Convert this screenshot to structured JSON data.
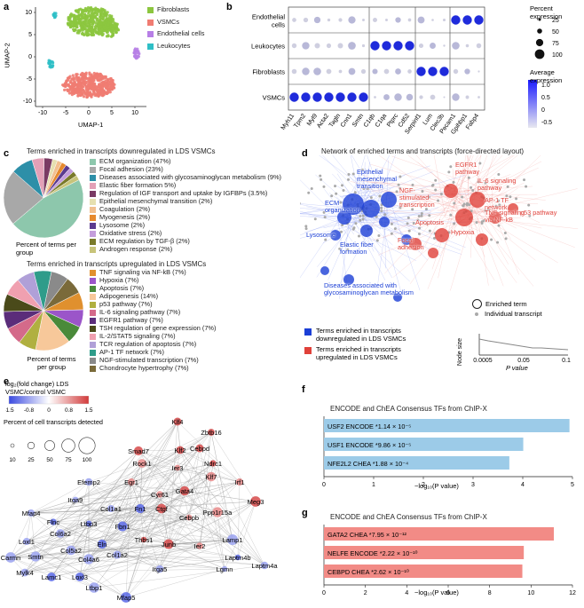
{
  "panels": {
    "a": {
      "label": "a",
      "xlabel": "UMAP-1",
      "ylabel": "UMAP-2",
      "xticks": [
        "-10",
        "-5",
        "0",
        "5",
        "10"
      ],
      "yticks": [
        "10",
        "5",
        "0",
        "-5",
        "-10"
      ],
      "legend": [
        {
          "name": "Fibroblasts",
          "color": "#8cc63f"
        },
        {
          "name": "VSMCs",
          "color": "#f07c72"
        },
        {
          "name": "Endothelial cells",
          "color": "#b77fe6"
        },
        {
          "name": "Leukocytes",
          "color": "#2fbfc6"
        }
      ]
    },
    "b": {
      "label": "b",
      "rows": [
        "Endothelial cells",
        "Leukocytes",
        "Fibroblasts",
        "VSMCs"
      ],
      "genes": [
        "Myh11",
        "Tpm2",
        "Myl9",
        "Acta2",
        "Tagln",
        "Cnn1",
        "Smtn",
        "C1qb",
        "C1qa",
        "Ptprc",
        "Cd52",
        "Serpinf1",
        "Lum",
        "Clec3b",
        "Pecam1",
        "Gpihbp1",
        "Fabp4"
      ],
      "size_legend_title": "Percent expression",
      "size_legend": [
        "25",
        "50",
        "75",
        "100"
      ],
      "color_legend_title": "Average expression",
      "color_legend": [
        "1.0",
        "0.5",
        "0",
        "-0.5"
      ]
    },
    "c": {
      "label": "c",
      "down_title": "Terms enriched in transcripts downregulated in LDS VSMCs",
      "down_items": [
        {
          "label": "ECM organization (47%)",
          "color": "#8dc7ac"
        },
        {
          "label": "Focal adhesion (23%)",
          "color": "#a8a8a8"
        },
        {
          "label": "Diseases associated with glycosaminoglycan metabolism (9%)",
          "color": "#2d8fa8"
        },
        {
          "label": "Elastic fiber formation 5%)",
          "color": "#e3a0b7"
        },
        {
          "label": "Regulation of IGF transport and uptake by IGFBPs (3.5%)",
          "color": "#7a3a63"
        },
        {
          "label": "Epithelial mesenchymal transition (2%)",
          "color": "#e6e0b0"
        },
        {
          "label": "Coagulation (2%)",
          "color": "#f2c08f"
        },
        {
          "label": "Myogenesis (2%)",
          "color": "#e68a2e"
        },
        {
          "label": "Lysosome (2%)",
          "color": "#5b3b8f"
        },
        {
          "label": "Oxidative stress (2%)",
          "color": "#c49ddb"
        },
        {
          "label": "ECM regulation by TGF-β (2%)",
          "color": "#7a7a2a"
        },
        {
          "label": "Androgen response (2%)",
          "color": "#c8c47a"
        }
      ],
      "down_caption": "Percent of terms per group",
      "up_title": "Terms enriched in transcripts upregulated in LDS VSMCs",
      "up_items": [
        {
          "label": "TNF signaling via NF-kB (7%)",
          "color": "#e0902e"
        },
        {
          "label": "Hypoxia (7%)",
          "color": "#9b55c9"
        },
        {
          "label": "Apoptosis (7%)",
          "color": "#4a8a3a"
        },
        {
          "label": "Adipogenesis (14%)",
          "color": "#f7c89a"
        },
        {
          "label": "p53 pathway (7%)",
          "color": "#b0b040"
        },
        {
          "label": "IL-6 signaling pathway (7%)",
          "color": "#d46a8a"
        },
        {
          "label": "EGFR1 pathway (7%)",
          "color": "#5b2d7a"
        },
        {
          "label": "TSH regulation of gene expression (7%)",
          "color": "#4a4a1a"
        },
        {
          "label": "IL-2/STAT5 signaling (7%)",
          "color": "#f0a0b0"
        },
        {
          "label": "TCR regulation of apoptosis (7%)",
          "color": "#b0a0d8"
        },
        {
          "label": "AP-1 TF network (7%)",
          "color": "#2f9c8a"
        },
        {
          "label": "NGF-stimulated transcription (7%)",
          "color": "#8a8a8a"
        },
        {
          "label": "Chondrocyte hypertrophy (7%)",
          "color": "#7a6a3a"
        }
      ],
      "up_caption": "Percent of terms per group"
    },
    "d": {
      "label": "d",
      "title": "Network of enriched terms and transcripts (force-directed layout)",
      "blue_terms": [
        "Epithelial mesenchymal transition",
        "ECM organization",
        "Lysosome",
        "Elastic fiber formation",
        "Diseases associated with glycosaminoglycan metabolism"
      ],
      "red_terms": [
        "EGFR1 pathway",
        "IL-6 signaling pathway",
        "AP-1 TF network",
        "p53 pathway",
        "TNF signaling via NF-kB",
        "Hypoxia",
        "Apoptosis",
        "Focal adhesion",
        "NGF-stimulated transcription"
      ],
      "node_legend": [
        "Enriched term",
        "Individual transcript"
      ],
      "color_legend": [
        {
          "label": "Terms enriched in transcripts downregulated in LDS VSMCs",
          "color": "#1b3fd6"
        },
        {
          "label": "Terms enriched in transcripts upregulated in LDS VSMCs",
          "color": "#e0413a"
        }
      ],
      "size_axis_label": "Node size",
      "p_axis_label": "P value",
      "p_ticks": [
        "0.0005",
        "0.05",
        "0.1"
      ]
    },
    "e": {
      "label": "e",
      "fc_title": "log₂(fold change) LDS VSMC/control VSMC",
      "fc_ticks": [
        "-1.5",
        "-0.8",
        "0",
        "0.8",
        "1.5"
      ],
      "pct_title": "Percent of cell transcripts detected",
      "pct_ticks": [
        "10",
        "25",
        "50",
        "75",
        "100"
      ],
      "genes": [
        "Klf4",
        "Zbtb16",
        "Smad7",
        "Klf2",
        "Ndrc1",
        "Cebpd",
        "Rock1",
        "Ier3",
        "Klf7",
        "Irf1",
        "Egr1",
        "Gata4",
        "Meg3",
        "Cyr61",
        "Ppp1r15a",
        "Ctgf",
        "Cebpb",
        "Efemp2",
        "Itga9",
        "Col1a1",
        "Fn1",
        "Mfap4",
        "Flnc",
        "Ltbp3",
        "Fbn1",
        "Thbs1",
        "Lamp1",
        "Junb",
        "Ier2",
        "Col6a2",
        "Eln",
        "Laptm4b",
        "Loxl1",
        "Col5a2",
        "Col4a6",
        "Col1a2",
        "Itga5",
        "Lgmn",
        "Laptm4a",
        "Carmn",
        "Smtn",
        "Mylk4",
        "Lamc1",
        "Loxl3",
        "Ltbp1",
        "Mfap5"
      ]
    },
    "f": {
      "label": "f",
      "title": "ENCODE and ChEA Consensus TFs from ChIP-X",
      "xlabel": "−log₁₀(P value)",
      "bars": [
        {
          "name": "USF2 ENCODE *1.14 × 10⁻⁵",
          "value": 4.94
        },
        {
          "name": "USF1 ENCODE *9.86 × 10⁻⁵",
          "value": 4.01
        },
        {
          "name": "NFE2L2 CHEA *1.88 × 10⁻⁴",
          "value": 3.73
        }
      ],
      "xticks": [
        "0",
        "1",
        "2",
        "3",
        "4",
        "5"
      ]
    },
    "g": {
      "label": "g",
      "title": "ENCODE and ChEA Consensus TFs from ChIP-X",
      "xlabel": "−log₁₀(P value)",
      "bars": [
        {
          "name": "GATA2 CHEA *7.95 × 10⁻¹²",
          "value": 11.1
        },
        {
          "name": "NELFE ENCODE *2.22 × 10⁻¹⁰",
          "value": 9.65
        },
        {
          "name": "CEBPD CHEA *2.62 × 10⁻¹⁰",
          "value": 9.58
        }
      ],
      "xticks": [
        "0",
        "2",
        "4",
        "6",
        "8",
        "10",
        "12"
      ]
    }
  },
  "chart_data": [
    {
      "type": "bar",
      "title": "ENCODE and ChEA Consensus TFs from ChIP-X",
      "categories": [
        "USF2 ENCODE",
        "USF1 ENCODE",
        "NFE2L2 CHEA"
      ],
      "values": [
        4.94,
        4.01,
        3.73
      ],
      "xlabel": "−log₁₀(P value)",
      "xlim": [
        0,
        5
      ]
    },
    {
      "type": "bar",
      "title": "ENCODE and ChEA Consensus TFs from ChIP-X",
      "categories": [
        "GATA2 CHEA",
        "NELFE ENCODE",
        "CEBPD CHEA"
      ],
      "values": [
        11.1,
        9.65,
        9.58
      ],
      "xlabel": "−log₁₀(P value)",
      "xlim": [
        0,
        12
      ]
    },
    {
      "type": "pie",
      "title": "Terms enriched in transcripts downregulated in LDS VSMCs",
      "categories": [
        "ECM organization",
        "Focal adhesion",
        "Diseases associated with glycosaminoglycan metabolism",
        "Elastic fiber formation",
        "Regulation of IGF transport and uptake by IGFBPs",
        "Epithelial mesenchymal transition",
        "Coagulation",
        "Myogenesis",
        "Lysosome",
        "Oxidative stress",
        "ECM regulation by TGF-β",
        "Androgen response"
      ],
      "values": [
        47,
        23,
        9,
        5,
        3.5,
        2,
        2,
        2,
        2,
        2,
        2,
        2
      ]
    },
    {
      "type": "pie",
      "title": "Terms enriched in transcripts upregulated in LDS VSMCs",
      "categories": [
        "TNF signaling via NF-kB",
        "Hypoxia",
        "Apoptosis",
        "Adipogenesis",
        "p53 pathway",
        "IL-6 signaling pathway",
        "EGFR1 pathway",
        "TSH regulation of gene expression",
        "IL-2/STAT5 signaling",
        "TCR regulation of apoptosis",
        "AP-1 TF network",
        "NGF-stimulated transcription",
        "Chondrocyte hypertrophy"
      ],
      "values": [
        7,
        7,
        7,
        14,
        7,
        7,
        7,
        7,
        7,
        7,
        7,
        7,
        7
      ]
    }
  ]
}
